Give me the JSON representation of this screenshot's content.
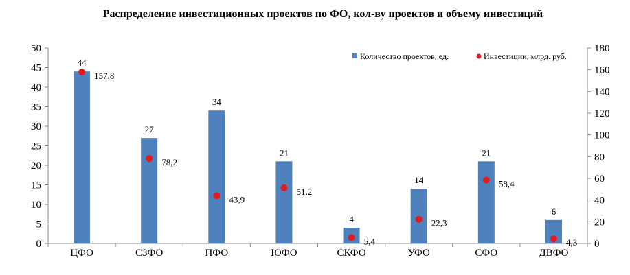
{
  "chart_data": {
    "type": "bar",
    "title": "Распределение инвестиционных проектов по ФО, кол-ву проектов и объему инвестиций",
    "categories": [
      "ЦФО",
      "СЗФО",
      "ПФО",
      "ЮФО",
      "СКФО",
      "УФО",
      "СФО",
      "ДВФО"
    ],
    "series": [
      {
        "name": "Количество проектов, ед.",
        "kind": "bar",
        "axis": "left",
        "color": "#4f81bd",
        "values": [
          44,
          27,
          34,
          21,
          4,
          14,
          21,
          6
        ],
        "labels": [
          "44",
          "27",
          "34",
          "21",
          "4",
          "14",
          "21",
          "6"
        ]
      },
      {
        "name": "Инвестиции, млрд. руб.",
        "kind": "scatter",
        "axis": "right",
        "color": "#e41a1c",
        "values": [
          157.8,
          78.2,
          43.9,
          51.2,
          5.4,
          22.3,
          58.4,
          4.3
        ],
        "labels": [
          "157,8",
          "78,2",
          "43,9",
          "51,2",
          "5,4",
          "22,3",
          "58,4",
          "4,3"
        ]
      }
    ],
    "ylim_left": [
      0,
      50
    ],
    "yticks_left": [
      "0",
      "5",
      "10",
      "15",
      "20",
      "25",
      "30",
      "35",
      "40",
      "45",
      "50"
    ],
    "ylim_right": [
      0,
      180
    ],
    "yticks_right": [
      "0",
      "20",
      "40",
      "60",
      "80",
      "100",
      "120",
      "140",
      "160",
      "180"
    ],
    "grid": false,
    "legend_position": "top-right"
  }
}
